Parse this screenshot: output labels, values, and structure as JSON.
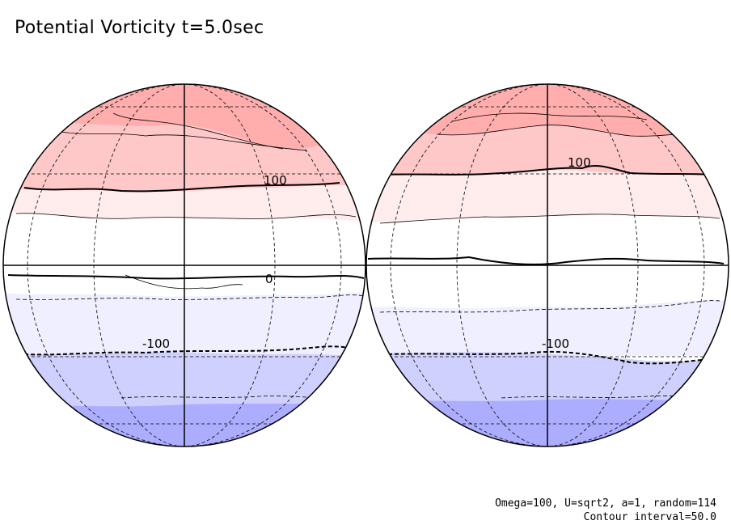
{
  "title": "Potential Vorticity t=5.0sec",
  "params_line": "Omega=100, U=sqrt2, a=1, random=114",
  "contour_line": "Contour interval=50.0",
  "contour_labels": {
    "left_pos": "100",
    "left_zero": "0",
    "left_neg": "-100",
    "right_pos": "100",
    "right_neg": "-100"
  },
  "colors": {
    "red_dark": "#ffadad",
    "red_mid": "#ffc8c8",
    "red_light": "#ffeded",
    "white": "#ffffff",
    "blue_light": "#efefff",
    "blue_mid": "#d0d0ff",
    "blue_dark": "#adadff"
  }
}
